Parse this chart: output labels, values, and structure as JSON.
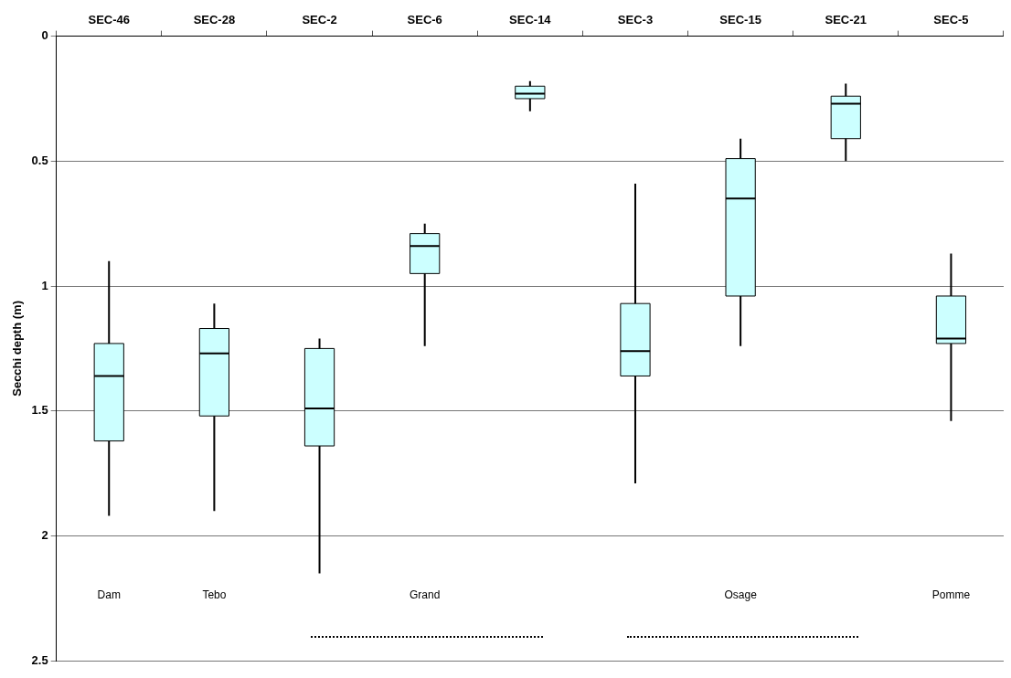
{
  "chart_data": {
    "type": "box",
    "ylabel": "Secchi depth (m)",
    "categories": [
      "SEC-46",
      "SEC-28",
      "SEC-2",
      "SEC-6",
      "SEC-14",
      "SEC-3",
      "SEC-15",
      "SEC-21",
      "SEC-5"
    ],
    "series": [
      {
        "color": "#ccffff",
        "boxes": [
          {
            "low": 0.9,
            "q1": 1.23,
            "median": 1.36,
            "q3": 1.62,
            "high": 1.92
          },
          {
            "low": 1.07,
            "q1": 1.17,
            "median": 1.27,
            "q3": 1.52,
            "high": 1.9
          },
          {
            "low": 1.21,
            "q1": 1.25,
            "median": 1.49,
            "q3": 1.64,
            "high": 2.15
          },
          {
            "low": 0.75,
            "q1": 0.79,
            "median": 0.84,
            "q3": 0.95,
            "high": 1.24
          },
          {
            "low": 0.18,
            "q1": 0.2,
            "median": 0.23,
            "q3": 0.25,
            "high": 0.3
          },
          {
            "low": 0.59,
            "q1": 1.07,
            "median": 1.26,
            "q3": 1.36,
            "high": 1.79
          },
          {
            "low": 0.41,
            "q1": 0.49,
            "median": 0.65,
            "q3": 1.04,
            "high": 1.24
          },
          {
            "low": 0.19,
            "q1": 0.24,
            "median": 0.27,
            "q3": 0.41,
            "high": 0.5
          },
          {
            "low": 0.87,
            "q1": 1.04,
            "median": 1.21,
            "q3": 1.23,
            "high": 1.54
          }
        ]
      }
    ],
    "ylim": [
      2.5,
      0
    ],
    "yticks": [
      0,
      0.5,
      1,
      1.5,
      2,
      2.5
    ],
    "grid": "y",
    "annotations": [
      "Dam",
      "Tebo",
      "Grand",
      "Osage",
      "Pomme"
    ]
  }
}
